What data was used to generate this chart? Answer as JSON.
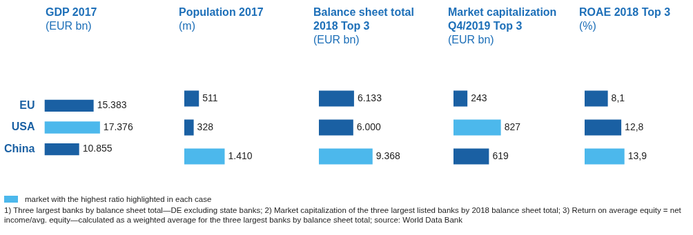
{
  "chart_data": [
    {
      "type": "bar",
      "orientation": "horizontal",
      "title": "GDP 2017",
      "subtitle": "(EUR bn)",
      "categories": [
        "EU",
        "USA",
        "China"
      ],
      "values": [
        15383,
        17376,
        10855
      ],
      "colors": [
        "#1a60a3",
        "#4cb8ec",
        "#1a60a3"
      ],
      "value_labels": [
        "15.383",
        "17.376",
        "10.855"
      ],
      "tick_labels": "y"
    },
    {
      "type": "bar",
      "orientation": "horizontal",
      "title": "Population 2017",
      "subtitle": "(m)",
      "categories": [
        null,
        null,
        null
      ],
      "values": [
        511,
        328,
        1410
      ],
      "colors": [
        "#1a60a3",
        "#1a60a3",
        "#4cb8ec"
      ],
      "value_labels": [
        "511",
        "328",
        "1.410"
      ],
      "tick_labels": false
    },
    {
      "type": "bar",
      "orientation": "horizontal",
      "title": "Balance sheet total 2018 Top 3",
      "subtitle": "(EUR bn)",
      "categories": [
        null,
        null,
        null
      ],
      "values": [
        6133,
        6000,
        9368
      ],
      "colors": [
        "#1a60a3",
        "#1a60a3",
        "#4cb8ec"
      ],
      "value_labels": [
        "6.133",
        "6.000",
        "9.368"
      ],
      "tick_labels": false
    },
    {
      "type": "bar",
      "orientation": "horizontal",
      "title": "Market capitalization Q4/2019 Top 3",
      "subtitle": "(EUR bn)",
      "categories": [
        null,
        null,
        null
      ],
      "values": [
        243,
        827,
        619
      ],
      "colors": [
        "#1a60a3",
        "#4cb8ec",
        "#1a60a3"
      ],
      "value_labels": [
        "243",
        "827",
        "619"
      ],
      "tick_labels": false
    },
    {
      "type": "bar",
      "orientation": "horizontal",
      "title": "ROAE 2018 Top 3",
      "subtitle": "(%)",
      "categories": [
        null,
        null,
        null
      ],
      "values": [
        8.1,
        12.8,
        13.9
      ],
      "colors": [
        "#1a60a3",
        "#1a60a3",
        "#4cb8ec"
      ],
      "value_labels": [
        "8,1",
        "12,8",
        "13,9"
      ],
      "tick_labels": false,
      "annotations": [
        "market with the highest ratio highlighted in each case",
        "1) Three largest banks by balance sheet total—DE excluding state banks; 2) Market capitalization of the three largest listed banks by 2018 balance sheet total; 3) Return on average equity = net income/avg. equity—calculated as a weighted average for the three largest banks by balance sheet total; source: World Data Bank"
      ]
    }
  ]
}
